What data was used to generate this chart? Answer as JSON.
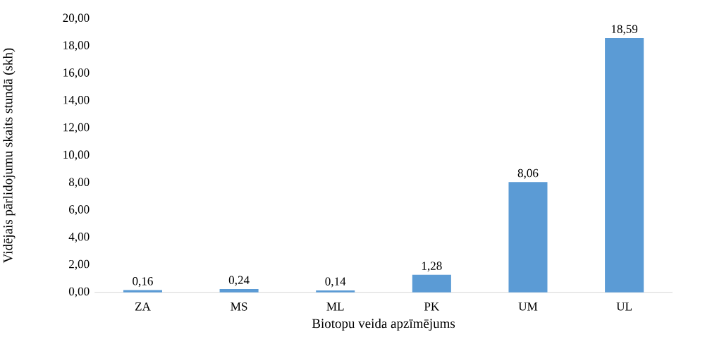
{
  "chart_data": {
    "type": "bar",
    "xlabel": "Biotopu veida apzīmējums",
    "ylabel": "Vidējais pārlidojumu skaits stundā (skh)",
    "categories": [
      "ZA",
      "MS",
      "ML",
      "PK",
      "UM",
      "UL"
    ],
    "values": [
      0.16,
      0.24,
      0.14,
      1.28,
      8.06,
      18.59
    ],
    "value_labels": [
      "0,16",
      "0,24",
      "0,14",
      "1,28",
      "8,06",
      "18,59"
    ],
    "color": "#5b9bd5",
    "ylim": [
      0,
      20
    ],
    "yticks": [
      {
        "value": 0,
        "label": "0,00"
      },
      {
        "value": 2,
        "label": "2,00"
      },
      {
        "value": 4,
        "label": "4,00"
      },
      {
        "value": 6,
        "label": "6,00"
      },
      {
        "value": 8,
        "label": "8,00"
      },
      {
        "value": 10,
        "label": "10,00"
      },
      {
        "value": 12,
        "label": "12,00"
      },
      {
        "value": 14,
        "label": "14,00"
      },
      {
        "value": 16,
        "label": "16,00"
      },
      {
        "value": 18,
        "label": "18,00"
      },
      {
        "value": 20,
        "label": "20,00"
      }
    ]
  }
}
